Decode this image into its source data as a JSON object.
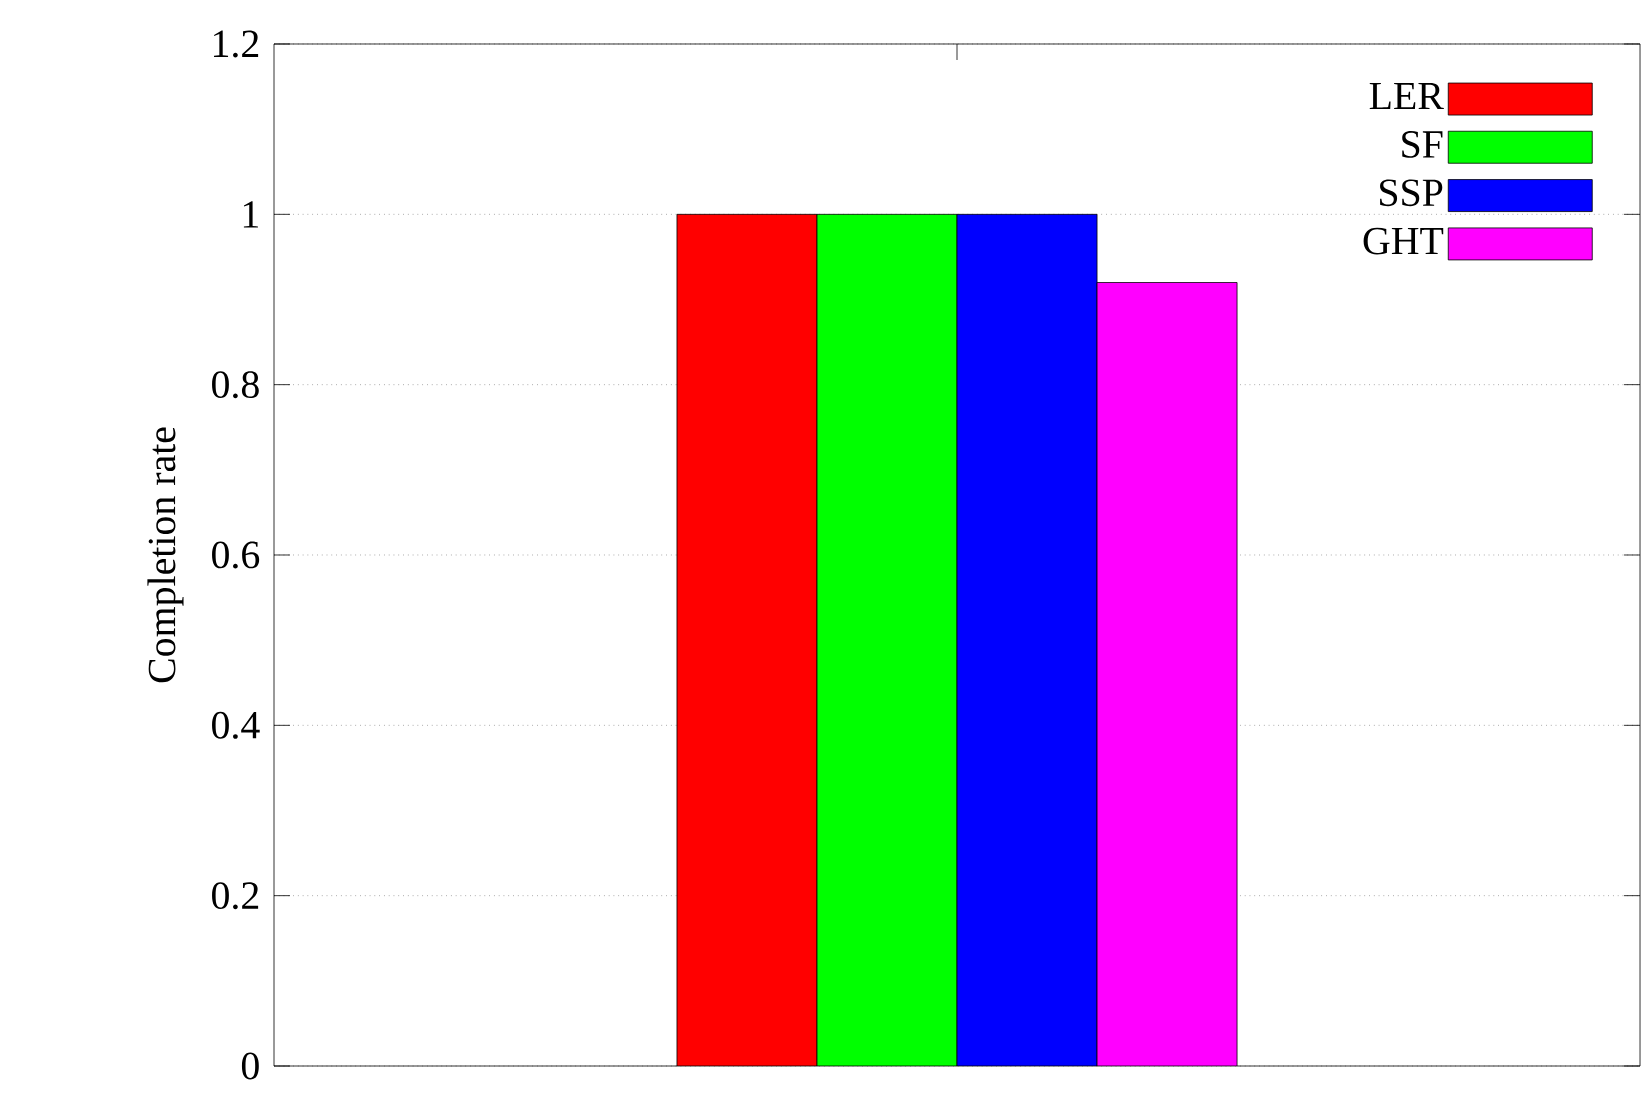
{
  "chart_data": {
    "type": "bar",
    "ylabel": "Completion rate",
    "categories": [
      null
    ],
    "series": [
      {
        "name": "LER",
        "color": "#ff0000",
        "values": [
          1.0
        ]
      },
      {
        "name": "SF",
        "color": "#00ff00",
        "values": [
          1.0
        ]
      },
      {
        "name": "SSP",
        "color": "#0000ff",
        "values": [
          1.0
        ]
      },
      {
        "name": "GHT",
        "color": "#ff00ff",
        "values": [
          0.92
        ]
      }
    ],
    "ylim": [
      0,
      1.2
    ],
    "yticks": [
      0,
      0.2,
      0.4,
      0.6,
      0.8,
      1,
      1.2
    ],
    "grid": "y",
    "legend": "top right"
  }
}
